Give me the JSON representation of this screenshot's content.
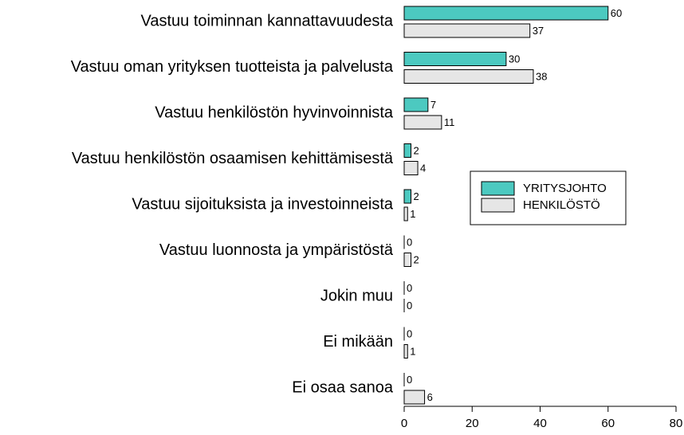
{
  "chart_data": {
    "type": "barh",
    "categories": [
      "Vastuu toiminnan kannattavuudesta",
      "Vastuu oman yrityksen tuotteista ja palvelusta",
      "Vastuu henkilöstön hyvinvoinnista",
      "Vastuu henkilöstön osaamisen kehittämisestä",
      "Vastuu sijoituksista ja investoinneista",
      "Vastuu luonnosta ja ympäristöstä",
      "Jokin muu",
      "Ei mikään",
      "Ei osaa sanoa"
    ],
    "series": [
      {
        "name": "YRITYSJOHTO",
        "color": "#4cc9c0",
        "values": [
          60,
          30,
          7,
          2,
          2,
          0,
          0,
          0,
          0
        ]
      },
      {
        "name": "HENKILÖSTÖ",
        "color": "#e6e6e6",
        "values": [
          37,
          38,
          11,
          4,
          1,
          2,
          0,
          1,
          6
        ]
      }
    ],
    "xlim": [
      0,
      80
    ],
    "xticks": [
      0,
      20,
      40,
      60,
      80
    ],
    "legend": "right"
  }
}
